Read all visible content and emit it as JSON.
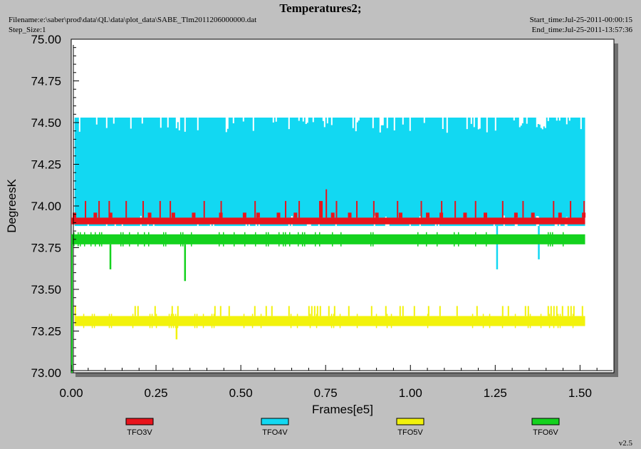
{
  "header": {
    "title": "Temperatures2;",
    "filename": "Filename:e:\\saber\\prod\\data\\QL\\data\\plot_data\\SABE_Tlm2011206000000.dat",
    "step_size": "Step_Size:1",
    "start_time": "Start_time:Jul-25-2011-00:00:15",
    "end_time": "End_time:Jul-25-2011-13:57:36"
  },
  "footer": {
    "version": "v2.5"
  },
  "colors": {
    "TFO3V": "#e8141c",
    "TFO4V": "#12d8f2",
    "TFO5V": "#f2f20c",
    "TFO6V": "#14d21e",
    "plot_background": "#ffffff",
    "frame_shadow": "#707070"
  },
  "chart_data": {
    "type": "line",
    "title": "Temperatures2;",
    "xlabel": "Frames[e5]",
    "ylabel": "DegreesK",
    "xlim": [
      0,
      1.6
    ],
    "ylim": [
      73.0,
      75.0
    ],
    "x_ticks": [
      "0.00",
      "0.25",
      "0.50",
      "0.75",
      "1.00",
      "1.25",
      "1.50"
    ],
    "x_tick_values": [
      0,
      0.25,
      0.5,
      0.75,
      1.0,
      1.25,
      1.5
    ],
    "y_ticks": [
      "73.00",
      "73.25",
      "73.50",
      "73.75",
      "74.00",
      "74.25",
      "74.50",
      "74.75",
      "75.00"
    ],
    "y_tick_values": [
      73.0,
      73.25,
      73.5,
      73.75,
      74.0,
      74.25,
      74.5,
      74.75,
      75.0
    ],
    "legend_position": "bottom",
    "grid": false,
    "series": [
      {
        "name": "TFO3V",
        "x_range": [
          0.0,
          1.515
        ],
        "band": [
          73.89,
          73.93
        ],
        "spikes_up": [
          [
            0.04,
            74.03
          ],
          [
            0.08,
            74.03
          ],
          [
            0.11,
            74.03
          ],
          [
            0.16,
            74.03
          ],
          [
            0.21,
            74.03
          ],
          [
            0.26,
            74.03
          ],
          [
            0.29,
            74.03
          ],
          [
            0.39,
            74.03
          ],
          [
            0.44,
            74.03
          ],
          [
            0.54,
            74.03
          ],
          [
            0.63,
            74.03
          ],
          [
            0.67,
            74.03
          ],
          [
            0.75,
            74.1
          ],
          [
            0.78,
            74.03
          ],
          [
            0.84,
            74.03
          ],
          [
            0.89,
            74.03
          ],
          [
            0.96,
            74.03
          ],
          [
            1.03,
            74.03
          ],
          [
            1.09,
            74.03
          ],
          [
            1.13,
            74.03
          ],
          [
            1.19,
            74.03
          ],
          [
            1.27,
            74.03
          ],
          [
            1.33,
            74.03
          ],
          [
            1.42,
            74.03
          ],
          [
            1.47,
            74.03
          ],
          [
            1.51,
            74.03
          ]
        ],
        "blocks": [
          [
            0.0085,
            73.96
          ],
          [
            0.07,
            73.96
          ],
          [
            0.115,
            73.96
          ],
          [
            0.23,
            73.96
          ],
          [
            0.3,
            73.96
          ],
          [
            0.36,
            73.96
          ],
          [
            0.44,
            73.96
          ],
          [
            0.51,
            73.96
          ],
          [
            0.55,
            73.96
          ],
          [
            0.61,
            73.96
          ],
          [
            0.66,
            73.96
          ],
          [
            0.735,
            74.03
          ],
          [
            0.77,
            73.96
          ],
          [
            0.82,
            73.96
          ],
          [
            0.9,
            73.96
          ],
          [
            0.97,
            73.96
          ],
          [
            1.05,
            73.96
          ],
          [
            1.09,
            73.96
          ],
          [
            1.16,
            73.96
          ],
          [
            1.22,
            73.96
          ],
          [
            1.31,
            73.96
          ],
          [
            1.36,
            73.96
          ],
          [
            1.44,
            73.96
          ],
          [
            1.51,
            73.96
          ]
        ]
      },
      {
        "name": "TFO4V",
        "x_range": [
          0.01,
          1.515
        ],
        "band": [
          73.88,
          74.53
        ],
        "dips": [
          [
            1.255,
            73.62
          ],
          [
            1.378,
            73.68
          ]
        ]
      },
      {
        "name": "TFO5V",
        "x_range": [
          0.01,
          1.515
        ],
        "band": [
          73.28,
          73.34
        ],
        "dips": [
          [
            0.31,
            73.2
          ]
        ]
      },
      {
        "name": "TFO6V",
        "x_range": [
          0.0,
          1.515
        ],
        "band": [
          73.77,
          73.83
        ],
        "start_drop": [
          0.0,
          73.0
        ],
        "dips": [
          [
            0.115,
            73.62
          ],
          [
            0.335,
            73.55
          ]
        ]
      }
    ]
  }
}
